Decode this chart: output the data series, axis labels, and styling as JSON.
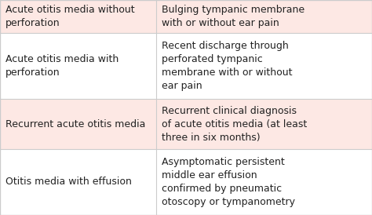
{
  "rows": [
    {
      "left": "Acute otitis media without\nperforation",
      "right": "Bulging tympanic membrane\nwith or without ear pain",
      "bg": "#fde8e4"
    },
    {
      "left": "Acute otitis media with\nperforation",
      "right": "Recent discharge through\nperforated tympanic\nmembrane with or without\near pain",
      "bg": "#ffffff"
    },
    {
      "left": "Recurrent acute otitis media",
      "right": "Recurrent clinical diagnosis\nof acute otitis media (at least\nthree in six months)",
      "bg": "#fde8e4"
    },
    {
      "left": "Otitis media with effusion",
      "right": "Asymptomatic persistent\nmiddle ear effusion\nconfirmed by pneumatic\notoscopy or tympanometry",
      "bg": "#ffffff"
    }
  ],
  "divider_color": "#cccccc",
  "text_color": "#222222",
  "font_size": 9.0,
  "col_split": 0.42,
  "fig_bg": "#ffffff"
}
